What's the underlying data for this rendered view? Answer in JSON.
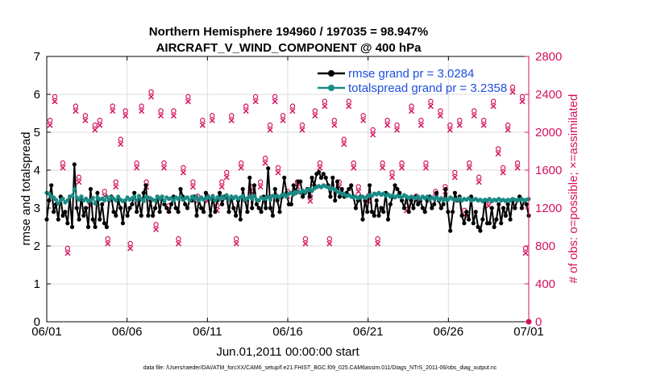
{
  "chart_data": {
    "type": "line",
    "title": "Northern Hemisphere 194960 / 197035 = 98.947%",
    "subtitle": "AIRCRAFT_V_WIND_COMPONENT @ 400 hPa",
    "xlabel": "Jun.01,2011 00:00:00 start",
    "ylabel": "rmse and totalspread",
    "y2label": "# of obs: o=possible; ×=assimilated",
    "xlim": [
      0,
      30
    ],
    "ylim": [
      0,
      7
    ],
    "y2lim": [
      0,
      2800
    ],
    "x_ticks": [
      0,
      5,
      10,
      15,
      20,
      25,
      30
    ],
    "x_tick_labels": [
      "06/01",
      "06/06",
      "06/11",
      "06/16",
      "06/21",
      "06/26",
      "07/01"
    ],
    "y_ticks": [
      0,
      1,
      2,
      3,
      4,
      5,
      6,
      7
    ],
    "y_tick_labels": [
      "0",
      "1",
      "2",
      "3",
      "4",
      "5",
      "6",
      "7"
    ],
    "y2_ticks": [
      0,
      400,
      800,
      1200,
      1600,
      2000,
      2400,
      2800
    ],
    "y2_tick_labels": [
      "0",
      "400",
      "800",
      "1200",
      "1600",
      "2000",
      "2400",
      "2800"
    ],
    "grid": true,
    "legend_position": "top-right",
    "colors": {
      "rmse": "#000000",
      "spread": "#1a8a84",
      "obs": "#d6105e",
      "legend_text": "#1f4fe0"
    },
    "series": [
      {
        "name": "rmse grand pr = 3.0284",
        "axis": "left",
        "values": [
          2.7,
          3.2,
          3.6,
          2.9,
          3.1,
          2.7,
          3.3,
          2.8,
          2.9,
          2.6,
          3.3,
          2.5,
          4.15,
          3.0,
          2.7,
          3.3,
          2.8,
          3.0,
          2.5,
          3.5,
          2.7,
          2.5,
          3.4,
          2.7,
          3.1,
          2.6,
          2.5,
          3.2,
          3.3,
          2.9,
          2.8,
          3.2,
          3.0,
          2.6,
          3.2,
          2.8,
          3.0,
          3.1,
          3.4,
          2.9,
          3.2,
          2.8,
          3.4,
          3.6,
          2.8,
          3.2,
          2.8,
          3.0,
          3.3,
          2.9,
          3.3,
          3.1,
          3.0,
          2.9,
          3.1,
          3.3,
          3.0,
          2.9,
          3.5,
          3.3,
          3.1,
          3.0,
          3.2,
          3.2,
          3.3,
          2.8,
          3.2,
          3.0,
          2.9,
          3.4,
          3.3,
          2.8,
          3.3,
          2.9,
          3.2,
          3.4,
          3.1,
          3.3,
          3.3,
          2.9,
          3.3,
          3.0,
          2.8,
          3.2,
          2.7,
          3.5,
          3.2,
          2.9,
          3.8,
          3.0,
          3.6,
          3.1,
          3.0,
          2.9,
          3.3,
          3.0,
          4.05,
          3.0,
          2.8,
          3.5,
          3.2,
          2.9,
          3.3,
          3.8,
          3.4,
          3.1,
          3.1,
          3.6,
          3.4,
          3.7,
          3.7,
          3.3,
          3.4,
          3.5,
          3.3,
          3.8,
          3.6,
          3.9,
          3.95,
          3.8,
          3.9,
          3.8,
          3.6,
          3.3,
          3.8,
          3.2,
          3.7,
          3.3,
          3.5,
          3.3,
          3.4,
          3.5,
          3.6,
          3.3,
          3.0,
          3.2,
          3.3,
          2.7,
          3.2,
          2.9,
          3.6,
          2.9,
          2.8,
          3.2,
          2.8,
          3.0,
          2.9,
          3.4,
          2.7,
          3.1,
          3.3,
          3.6,
          3.5,
          3.4,
          3.2,
          3.0,
          3.3,
          2.9,
          3.2,
          3.0,
          3.3,
          3.1,
          3.2,
          3.0,
          2.9,
          3.2,
          3.3,
          3.0,
          3.1,
          3.4,
          3.2,
          3.0,
          3.1,
          3.5,
          2.9,
          2.4,
          2.9,
          3.4,
          3.2,
          3.3,
          2.8,
          2.6,
          2.9,
          2.7,
          3.3,
          2.6,
          2.9,
          2.5,
          2.4,
          2.7,
          3.2,
          2.6,
          2.6,
          3.0,
          2.5,
          2.7,
          3.1,
          2.6,
          3.0,
          2.8,
          3.1,
          2.7,
          3.2,
          3.0,
          3.2,
          3.3,
          3.0,
          3.2,
          3.1,
          2.8
        ]
      },
      {
        "name": "totalspread grand pr = 3.2358",
        "axis": "left",
        "values": [
          3.4,
          3.38,
          3.3,
          3.28,
          3.22,
          3.12,
          3.2,
          3.25,
          3.15,
          3.2,
          3.3,
          3.32,
          3.5,
          3.28,
          3.22,
          3.3,
          3.2,
          3.25,
          3.18,
          3.2,
          3.27,
          3.12,
          3.28,
          3.23,
          3.25,
          3.2,
          3.3,
          3.22,
          3.28,
          3.25,
          3.2,
          3.3,
          3.22,
          3.18,
          3.2,
          3.28,
          3.22,
          3.26,
          3.3,
          3.2,
          3.32,
          3.24,
          3.18,
          3.3,
          3.28,
          3.26,
          3.22,
          3.2,
          3.3,
          3.24,
          3.3,
          3.18,
          3.28,
          3.24,
          3.26,
          3.2,
          3.28,
          3.24,
          3.3,
          3.22,
          3.26,
          3.28,
          3.2,
          3.3,
          3.24,
          3.3,
          3.2,
          3.28,
          3.22,
          3.26,
          3.3,
          3.24,
          3.32,
          3.2,
          3.28,
          3.24,
          3.3,
          3.26,
          3.34,
          3.22,
          3.3,
          3.26,
          3.3,
          3.24,
          3.28,
          3.32,
          3.22,
          3.26,
          3.3,
          3.24,
          3.32,
          3.22,
          3.2,
          3.28,
          3.24,
          3.26,
          3.3,
          3.22,
          3.32,
          3.3,
          3.32,
          3.28,
          3.34,
          3.36,
          3.3,
          3.38,
          3.4,
          3.36,
          3.42,
          3.44,
          3.4,
          3.46,
          3.42,
          3.48,
          3.5,
          3.45,
          3.52,
          3.55,
          3.58,
          3.55,
          3.6,
          3.57,
          3.55,
          3.5,
          3.52,
          3.48,
          3.44,
          3.4,
          3.38,
          3.36,
          3.32,
          3.34,
          3.3,
          3.28,
          3.3,
          3.26,
          3.28,
          3.3,
          3.26,
          3.3,
          3.34,
          3.32,
          3.38,
          3.36,
          3.4,
          3.35,
          3.38,
          3.32,
          3.36,
          3.3,
          3.34,
          3.28,
          3.32,
          3.3,
          3.28,
          3.34,
          3.3,
          3.26,
          3.3,
          3.28,
          3.26,
          3.3,
          3.24,
          3.3,
          3.26,
          3.3,
          3.22,
          3.28,
          3.24,
          3.28,
          3.22,
          3.26,
          3.2,
          3.24,
          3.22,
          3.28,
          3.24,
          3.2,
          3.22,
          3.26,
          3.2,
          3.24,
          3.22,
          3.26,
          3.2,
          3.22,
          3.24,
          3.2,
          3.22,
          3.18,
          3.22,
          3.2,
          3.24,
          3.18,
          3.22,
          3.2,
          3.24,
          3.2,
          3.22,
          3.18,
          3.22,
          3.2,
          3.24,
          3.22,
          3.2,
          3.22,
          3.24,
          3.2,
          3.22,
          3.24
        ]
      }
    ],
    "obs_possible": [
      [
        0.2,
        2100
      ],
      [
        0.5,
        2350
      ],
      [
        1.0,
        1650
      ],
      [
        1.3,
        750
      ],
      [
        1.8,
        2250
      ],
      [
        2.0,
        1500
      ],
      [
        2.4,
        2150
      ],
      [
        2.7,
        1250
      ],
      [
        3.0,
        2050
      ],
      [
        3.3,
        2100
      ],
      [
        3.6,
        1350
      ],
      [
        3.8,
        850
      ],
      [
        4.1,
        2250
      ],
      [
        4.3,
        1450
      ],
      [
        4.6,
        1900
      ],
      [
        4.9,
        2200
      ],
      [
        5.2,
        800
      ],
      [
        5.6,
        1650
      ],
      [
        5.9,
        2250
      ],
      [
        6.2,
        1450
      ],
      [
        6.5,
        2400
      ],
      [
        6.8,
        1000
      ],
      [
        7.1,
        2200
      ],
      [
        7.3,
        1650
      ],
      [
        7.6,
        1200
      ],
      [
        7.9,
        2200
      ],
      [
        8.2,
        850
      ],
      [
        8.5,
        1600
      ],
      [
        8.8,
        2350
      ],
      [
        9.1,
        1450
      ],
      [
        9.4,
        1300
      ],
      [
        9.7,
        2100
      ],
      [
        10.0,
        1300
      ],
      [
        10.3,
        2150
      ],
      [
        10.6,
        1200
      ],
      [
        10.9,
        1450
      ],
      [
        11.2,
        1550
      ],
      [
        11.5,
        2150
      ],
      [
        11.8,
        850
      ],
      [
        12.1,
        1650
      ],
      [
        12.4,
        2250
      ],
      [
        12.7,
        1400
      ],
      [
        13.0,
        2350
      ],
      [
        13.3,
        1450
      ],
      [
        13.6,
        1700
      ],
      [
        13.9,
        2050
      ],
      [
        14.2,
        2350
      ],
      [
        14.4,
        1600
      ],
      [
        14.7,
        2150
      ],
      [
        15.0,
        1350
      ],
      [
        15.3,
        2250
      ],
      [
        15.6,
        1450
      ],
      [
        15.9,
        2050
      ],
      [
        16.1,
        850
      ],
      [
        16.4,
        1300
      ],
      [
        16.7,
        2200
      ],
      [
        17.0,
        1650
      ],
      [
        17.3,
        2300
      ],
      [
        17.6,
        850
      ],
      [
        17.9,
        2100
      ],
      [
        18.2,
        1450
      ],
      [
        18.5,
        1900
      ],
      [
        18.8,
        2300
      ],
      [
        19.1,
        1650
      ],
      [
        19.4,
        1400
      ],
      [
        19.7,
        2150
      ],
      [
        20.0,
        1300
      ],
      [
        20.3,
        2000
      ],
      [
        20.6,
        850
      ],
      [
        20.9,
        1650
      ],
      [
        21.2,
        2100
      ],
      [
        21.5,
        1550
      ],
      [
        21.8,
        2050
      ],
      [
        22.1,
        1650
      ],
      [
        22.4,
        1200
      ],
      [
        22.7,
        2250
      ],
      [
        23.0,
        1300
      ],
      [
        23.3,
        2100
      ],
      [
        23.6,
        1650
      ],
      [
        23.9,
        2300
      ],
      [
        24.2,
        1350
      ],
      [
        24.5,
        2200
      ],
      [
        24.8,
        1400
      ],
      [
        25.1,
        2050
      ],
      [
        25.4,
        1550
      ],
      [
        25.7,
        2100
      ],
      [
        26.0,
        1150
      ],
      [
        26.3,
        1650
      ],
      [
        26.6,
        2200
      ],
      [
        26.9,
        1500
      ],
      [
        27.2,
        2100
      ],
      [
        27.5,
        1250
      ],
      [
        27.8,
        2300
      ],
      [
        28.1,
        1800
      ],
      [
        28.4,
        1600
      ],
      [
        28.7,
        2050
      ],
      [
        29.0,
        2450
      ],
      [
        29.3,
        1650
      ],
      [
        29.6,
        2350
      ],
      [
        29.8,
        750
      ]
    ]
  },
  "footnote": "data file: /Users/raeder/DAI/ATM_forcXX/CAM6_setup/f.e21.FHIST_BGC.f09_025.CAM6assim.011/Diags_NTrS_2011-06/obs_diag_output.nc"
}
